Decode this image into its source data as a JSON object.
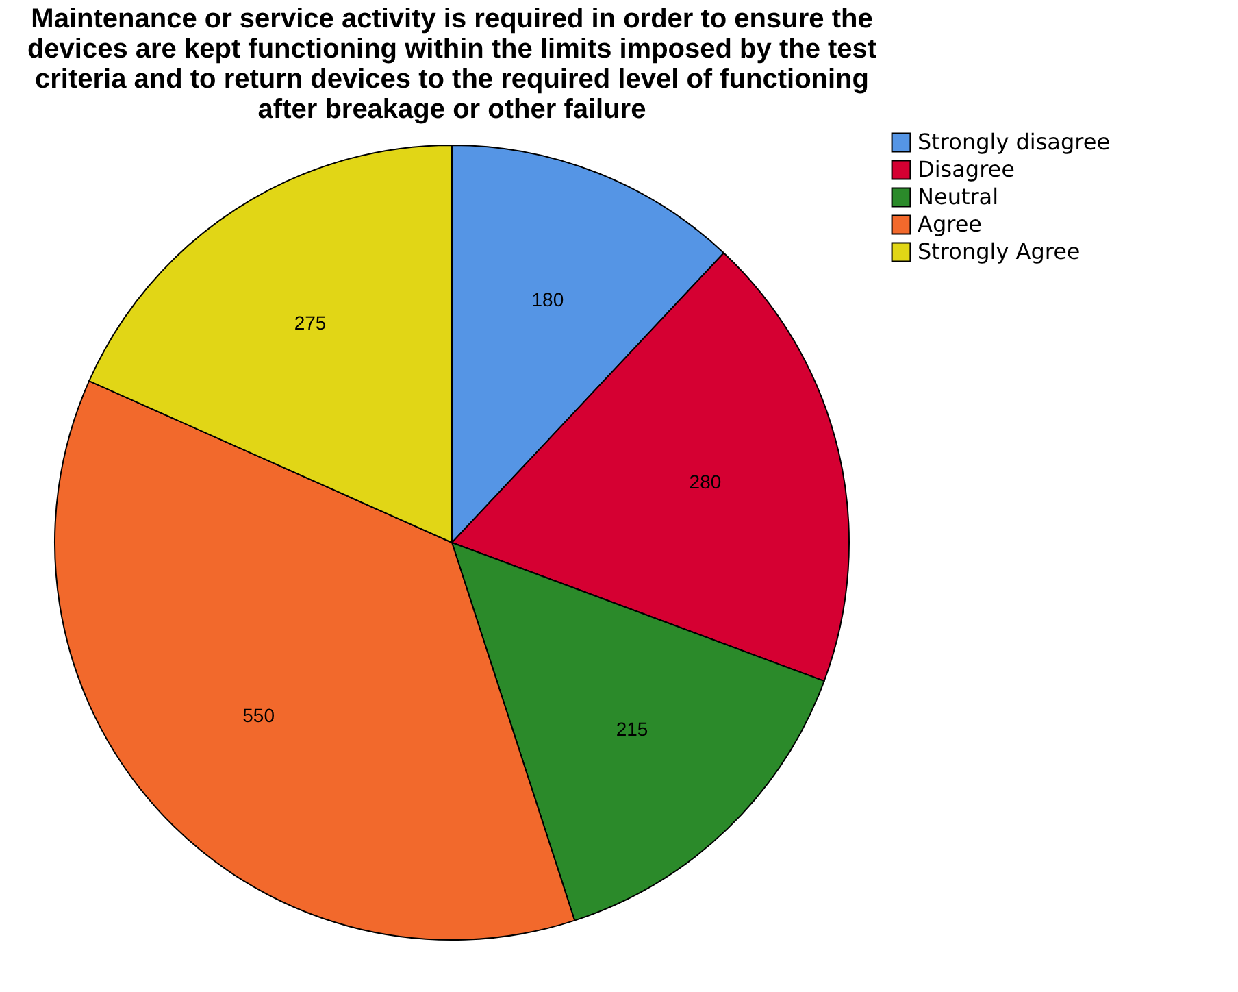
{
  "chart_data": {
    "type": "pie",
    "title": "Maintenance or service activity is required in order to ensure the devices are kept functioning within the limits imposed by the test criteria and to return devices to the required level of functioning after breakage or other failure",
    "categories": [
      "Strongly disagree",
      "Disagree",
      "Neutral",
      "Agree",
      "Strongly Agree"
    ],
    "values": [
      180,
      280,
      215,
      550,
      275
    ],
    "colors": [
      "#5595e5",
      "#d50032",
      "#2b8a2a",
      "#f2692c",
      "#e1d616"
    ],
    "data_labels": true,
    "legend": "top right"
  }
}
